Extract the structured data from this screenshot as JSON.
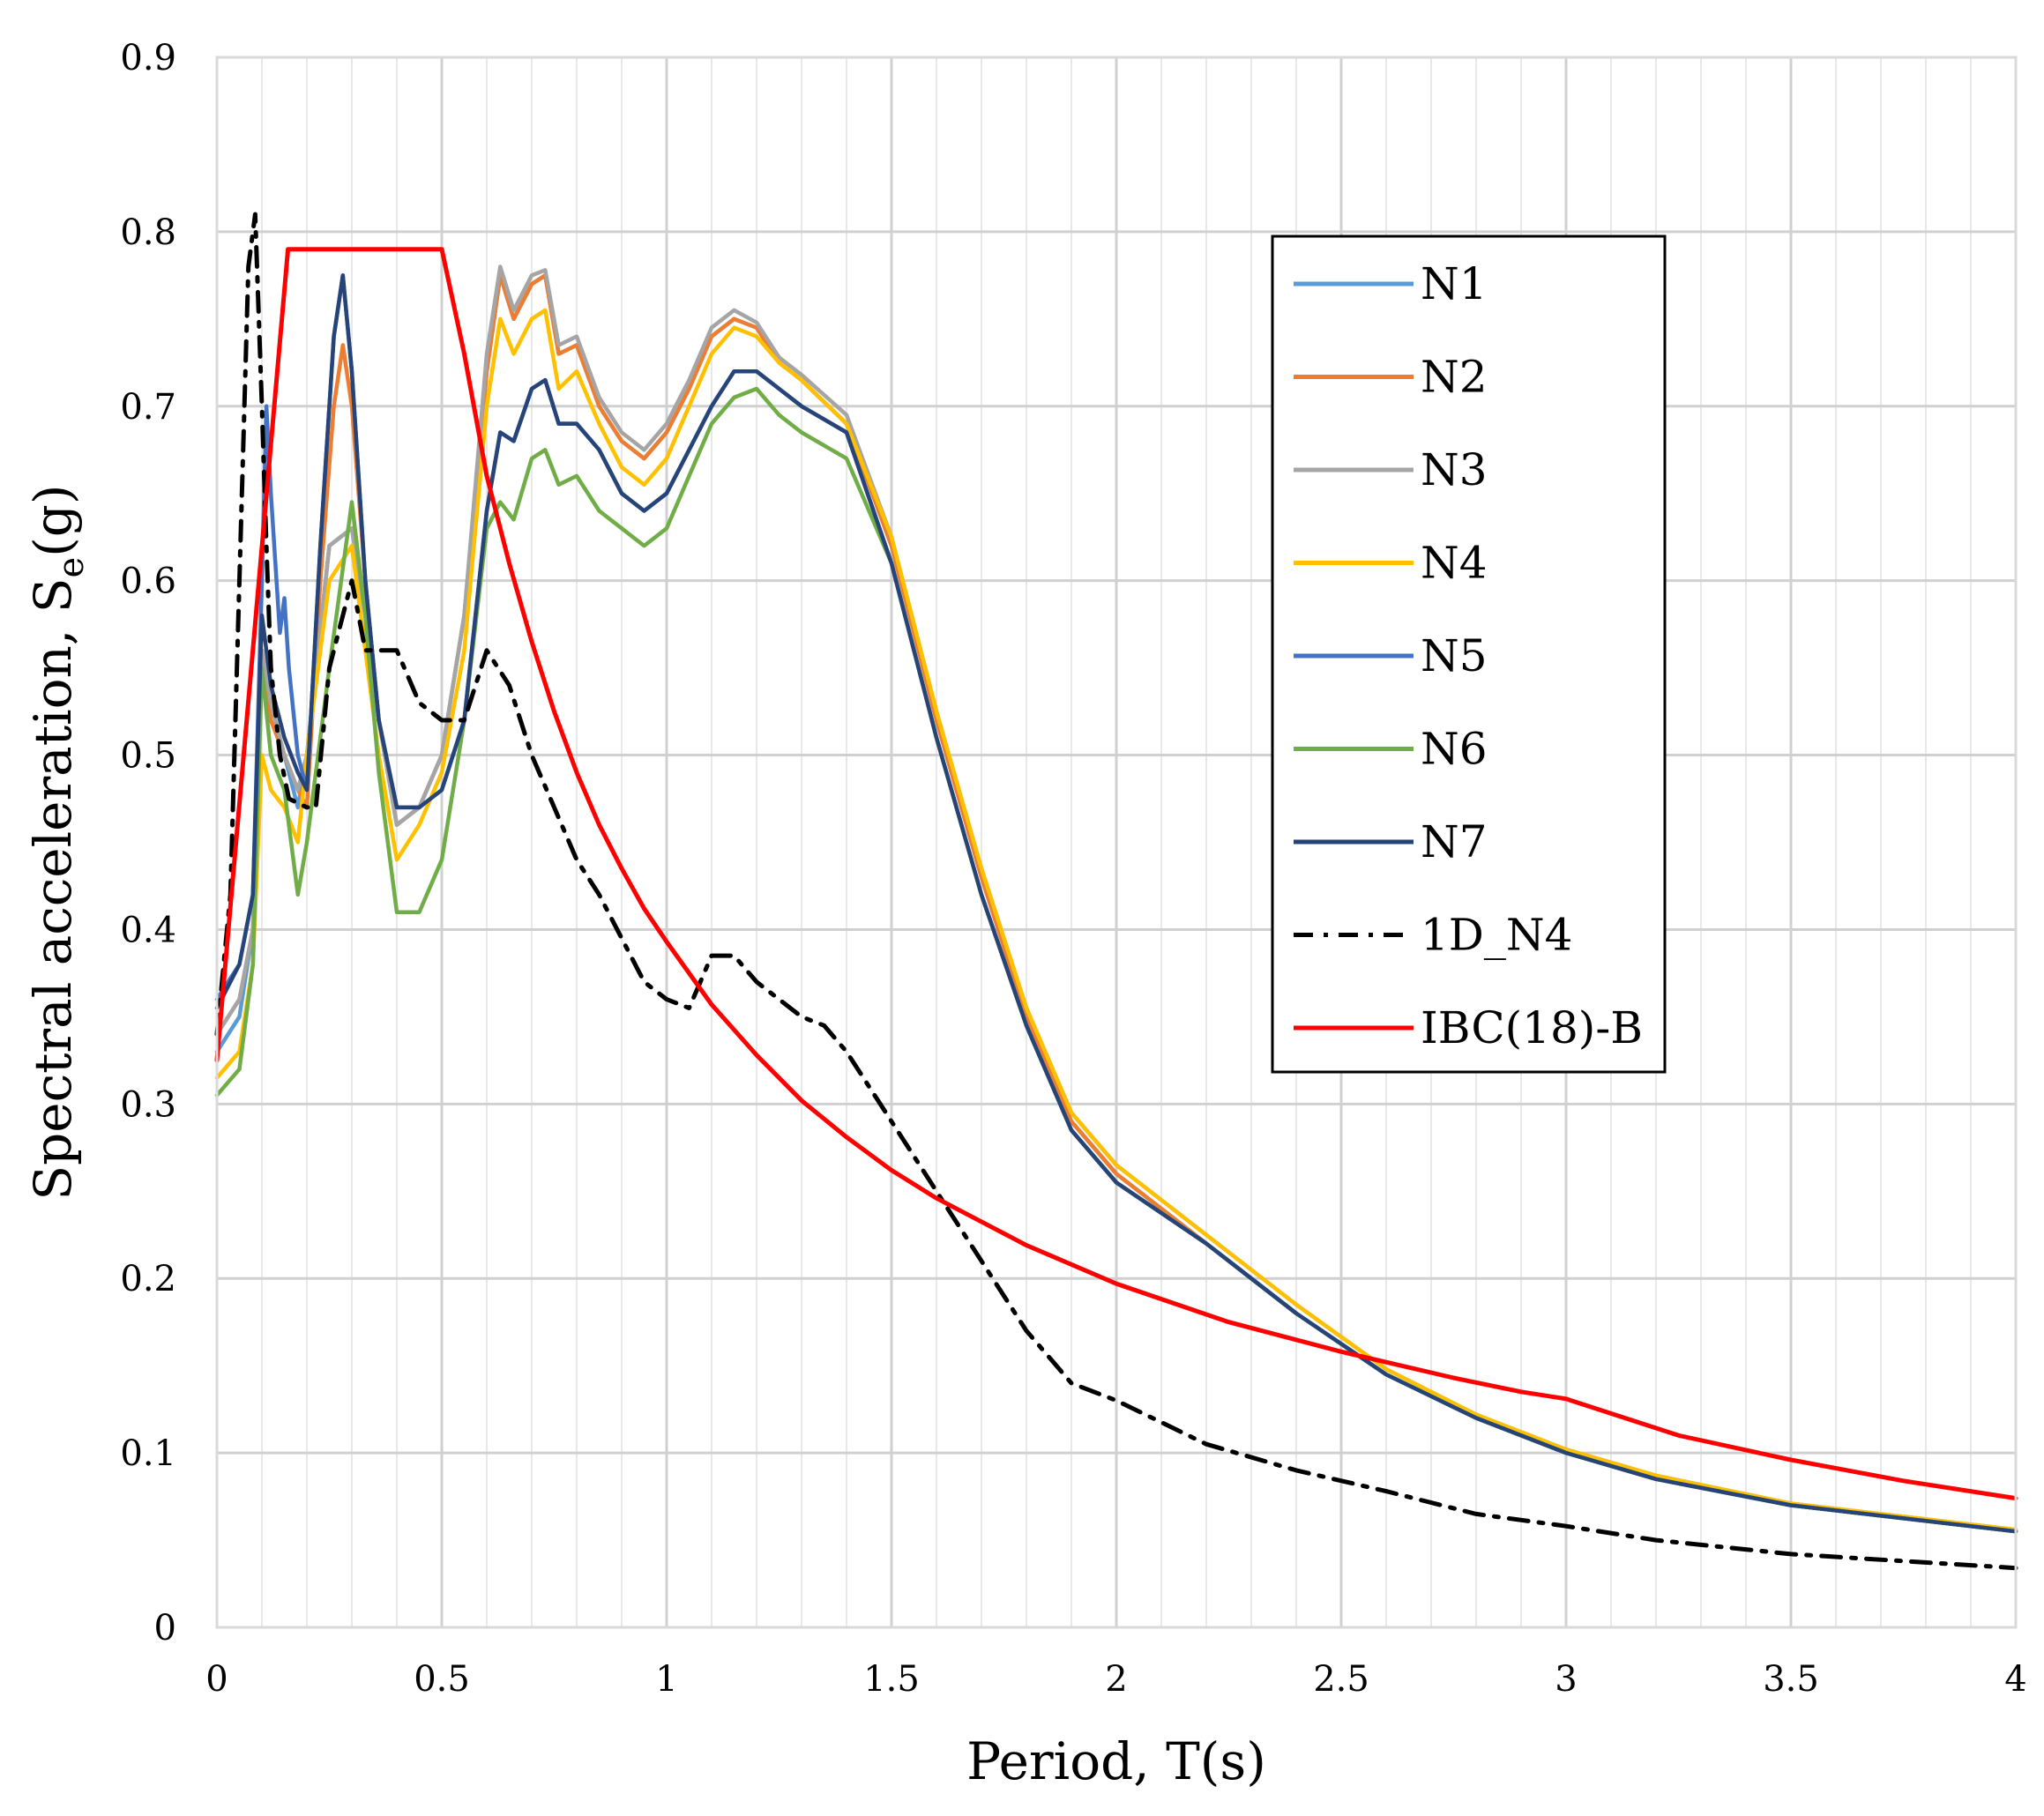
{
  "chart_data": {
    "type": "line",
    "title": "",
    "xlabel": "Period, T(s)",
    "ylabel_main": "Spectral acceleration, S",
    "ylabel_sub": "e",
    "ylabel_tail": "(g)",
    "xlim": [
      0,
      4
    ],
    "ylim": [
      0,
      0.9
    ],
    "x_ticks": [
      0,
      0.5,
      1,
      1.5,
      2,
      2.5,
      3,
      3.5,
      4
    ],
    "x_tick_labels": [
      "0",
      "0.5",
      "1",
      "1.5",
      "2",
      "2.5",
      "3",
      "3.5",
      "4"
    ],
    "y_ticks": [
      0,
      0.1,
      0.2,
      0.3,
      0.4,
      0.5,
      0.6,
      0.7,
      0.8,
      0.9
    ],
    "y_tick_labels": [
      "0",
      "0.1",
      "0.2",
      "0.3",
      "0.4",
      "0.5",
      "0.6",
      "0.7",
      "0.8",
      "0.9"
    ],
    "grid": true,
    "minor_x_grid_step": 0.1,
    "legend_position": "top-right",
    "series": [
      {
        "name": "N1",
        "color": "#5B9BD5",
        "dash": "solid",
        "x": [
          0,
          0.05,
          0.08,
          0.1,
          0.12,
          0.15,
          0.18,
          0.2,
          0.25,
          0.3,
          0.33,
          0.36,
          0.4,
          0.45,
          0.5,
          0.55,
          0.6,
          0.63,
          0.66,
          0.7,
          0.73,
          0.76,
          0.8,
          0.85,
          0.9,
          0.95,
          1,
          1.05,
          1.1,
          1.15,
          1.2,
          1.25,
          1.3,
          1.4,
          1.5,
          1.6,
          1.7,
          1.8,
          1.9,
          2,
          2.2,
          2.4,
          2.6,
          2.8,
          3,
          3.2,
          3.5,
          4
        ],
        "y": [
          0.33,
          0.35,
          0.4,
          0.55,
          0.52,
          0.5,
          0.47,
          0.5,
          0.62,
          0.63,
          0.58,
          0.52,
          0.46,
          0.47,
          0.5,
          0.58,
          0.72,
          0.775,
          0.75,
          0.77,
          0.775,
          0.73,
          0.735,
          0.7,
          0.68,
          0.67,
          0.685,
          0.71,
          0.74,
          0.75,
          0.745,
          0.725,
          0.715,
          0.69,
          0.62,
          0.52,
          0.43,
          0.35,
          0.29,
          0.26,
          0.22,
          0.18,
          0.145,
          0.12,
          0.1,
          0.085,
          0.07,
          0.055
        ]
      },
      {
        "name": "N2",
        "color": "#ED7D31",
        "dash": "solid",
        "x": [
          0,
          0.05,
          0.08,
          0.1,
          0.12,
          0.15,
          0.18,
          0.2,
          0.23,
          0.26,
          0.28,
          0.3,
          0.33,
          0.36,
          0.4,
          0.45,
          0.5,
          0.55,
          0.6,
          0.63,
          0.66,
          0.7,
          0.73,
          0.76,
          0.8,
          0.85,
          0.9,
          0.95,
          1,
          1.05,
          1.1,
          1.15,
          1.2,
          1.25,
          1.3,
          1.4,
          1.5,
          1.6,
          1.7,
          1.8,
          1.9,
          2,
          2.2,
          2.4,
          2.6,
          2.8,
          3,
          3.2,
          3.5,
          4
        ],
        "y": [
          0.34,
          0.36,
          0.4,
          0.56,
          0.52,
          0.5,
          0.48,
          0.47,
          0.6,
          0.7,
          0.735,
          0.7,
          0.6,
          0.52,
          0.46,
          0.47,
          0.5,
          0.58,
          0.72,
          0.775,
          0.75,
          0.77,
          0.775,
          0.73,
          0.735,
          0.7,
          0.68,
          0.67,
          0.685,
          0.71,
          0.74,
          0.75,
          0.745,
          0.725,
          0.715,
          0.69,
          0.62,
          0.52,
          0.43,
          0.35,
          0.29,
          0.26,
          0.22,
          0.18,
          0.145,
          0.12,
          0.1,
          0.085,
          0.07,
          0.055
        ]
      },
      {
        "name": "N3",
        "color": "#A5A5A5",
        "dash": "solid",
        "x": [
          0,
          0.05,
          0.08,
          0.1,
          0.12,
          0.15,
          0.18,
          0.2,
          0.25,
          0.3,
          0.33,
          0.36,
          0.4,
          0.45,
          0.5,
          0.55,
          0.6,
          0.63,
          0.66,
          0.7,
          0.73,
          0.76,
          0.8,
          0.85,
          0.9,
          0.95,
          1,
          1.05,
          1.1,
          1.15,
          1.2,
          1.25,
          1.3,
          1.4,
          1.5,
          1.6,
          1.7,
          1.8,
          1.9,
          2,
          2.2,
          2.4,
          2.6,
          2.8,
          3,
          3.2,
          3.5,
          4
        ],
        "y": [
          0.34,
          0.36,
          0.4,
          0.56,
          0.53,
          0.5,
          0.48,
          0.5,
          0.62,
          0.63,
          0.58,
          0.52,
          0.46,
          0.47,
          0.5,
          0.58,
          0.73,
          0.78,
          0.755,
          0.775,
          0.778,
          0.735,
          0.74,
          0.705,
          0.685,
          0.675,
          0.69,
          0.715,
          0.745,
          0.755,
          0.748,
          0.728,
          0.718,
          0.695,
          0.625,
          0.525,
          0.435,
          0.355,
          0.295,
          0.265,
          0.225,
          0.185,
          0.148,
          0.122,
          0.102,
          0.087,
          0.071,
          0.056
        ]
      },
      {
        "name": "N4",
        "color": "#FFC000",
        "dash": "solid",
        "x": [
          0,
          0.05,
          0.08,
          0.1,
          0.12,
          0.15,
          0.18,
          0.2,
          0.25,
          0.3,
          0.33,
          0.36,
          0.4,
          0.45,
          0.5,
          0.55,
          0.6,
          0.63,
          0.66,
          0.7,
          0.73,
          0.76,
          0.8,
          0.85,
          0.9,
          0.95,
          1,
          1.05,
          1.1,
          1.15,
          1.2,
          1.25,
          1.3,
          1.4,
          1.5,
          1.6,
          1.7,
          1.8,
          1.9,
          2,
          2.2,
          2.4,
          2.6,
          2.8,
          3,
          3.2,
          3.5,
          4
        ],
        "y": [
          0.315,
          0.33,
          0.38,
          0.5,
          0.48,
          0.47,
          0.45,
          0.5,
          0.6,
          0.62,
          0.56,
          0.5,
          0.44,
          0.46,
          0.49,
          0.56,
          0.7,
          0.75,
          0.73,
          0.75,
          0.755,
          0.71,
          0.72,
          0.69,
          0.665,
          0.655,
          0.67,
          0.7,
          0.73,
          0.745,
          0.74,
          0.725,
          0.715,
          0.69,
          0.625,
          0.525,
          0.435,
          0.355,
          0.295,
          0.265,
          0.225,
          0.185,
          0.148,
          0.122,
          0.102,
          0.087,
          0.071,
          0.056
        ]
      },
      {
        "name": "N5",
        "color": "#4472C4",
        "dash": "solid",
        "x": [
          0,
          0.05,
          0.08,
          0.1,
          0.11,
          0.12,
          0.14,
          0.15,
          0.16,
          0.18,
          0.2,
          0.23,
          0.26,
          0.28,
          0.3,
          0.33,
          0.36,
          0.4,
          0.45,
          0.5,
          0.55,
          0.6,
          0.63,
          0.66,
          0.7,
          0.73,
          0.76,
          0.8,
          0.85,
          0.9,
          0.95,
          1,
          1.05,
          1.1,
          1.15,
          1.2,
          1.25,
          1.3,
          1.4,
          1.5,
          1.6,
          1.7,
          1.8,
          1.9,
          2,
          2.2,
          2.4,
          2.6,
          2.8,
          3,
          3.2,
          3.5,
          4
        ],
        "y": [
          0.36,
          0.38,
          0.42,
          0.6,
          0.7,
          0.65,
          0.57,
          0.59,
          0.55,
          0.5,
          0.48,
          0.62,
          0.74,
          0.775,
          0.72,
          0.6,
          0.52,
          0.47,
          0.47,
          0.48,
          0.52,
          0.64,
          0.685,
          0.68,
          0.71,
          0.715,
          0.69,
          0.69,
          0.675,
          0.65,
          0.64,
          0.65,
          0.675,
          0.7,
          0.72,
          0.72,
          0.71,
          0.7,
          0.685,
          0.61,
          0.51,
          0.42,
          0.345,
          0.285,
          0.255,
          0.22,
          0.18,
          0.145,
          0.12,
          0.1,
          0.085,
          0.07,
          0.055
        ]
      },
      {
        "name": "N6",
        "color": "#70AD47",
        "dash": "solid",
        "x": [
          0,
          0.05,
          0.08,
          0.1,
          0.12,
          0.15,
          0.18,
          0.2,
          0.25,
          0.3,
          0.33,
          0.36,
          0.4,
          0.43,
          0.45,
          0.5,
          0.55,
          0.6,
          0.63,
          0.66,
          0.7,
          0.73,
          0.76,
          0.8,
          0.85,
          0.9,
          0.95,
          1,
          1.05,
          1.1,
          1.15,
          1.2,
          1.25,
          1.3,
          1.4,
          1.5,
          1.6,
          1.7,
          1.8,
          1.9,
          2,
          2.2,
          2.4,
          2.6,
          2.8,
          3,
          3.2,
          3.5,
          4
        ],
        "y": [
          0.305,
          0.32,
          0.38,
          0.55,
          0.5,
          0.48,
          0.42,
          0.45,
          0.55,
          0.645,
          0.58,
          0.49,
          0.41,
          0.41,
          0.41,
          0.44,
          0.52,
          0.63,
          0.645,
          0.635,
          0.67,
          0.675,
          0.655,
          0.66,
          0.64,
          0.63,
          0.62,
          0.63,
          0.66,
          0.69,
          0.705,
          0.71,
          0.695,
          0.685,
          0.67,
          0.61,
          0.51,
          0.42,
          0.345,
          0.285,
          0.255,
          0.22,
          0.18,
          0.145,
          0.12,
          0.1,
          0.085,
          0.07,
          0.055
        ]
      },
      {
        "name": "N7",
        "color": "#264478",
        "dash": "solid",
        "x": [
          0,
          0.05,
          0.08,
          0.1,
          0.12,
          0.15,
          0.18,
          0.2,
          0.23,
          0.26,
          0.28,
          0.3,
          0.33,
          0.36,
          0.4,
          0.45,
          0.5,
          0.55,
          0.6,
          0.63,
          0.66,
          0.7,
          0.73,
          0.76,
          0.8,
          0.85,
          0.9,
          0.95,
          1,
          1.05,
          1.1,
          1.15,
          1.2,
          1.25,
          1.3,
          1.4,
          1.5,
          1.6,
          1.7,
          1.8,
          1.9,
          2,
          2.2,
          2.4,
          2.6,
          2.8,
          3,
          3.2,
          3.5,
          4
        ],
        "y": [
          0.355,
          0.38,
          0.42,
          0.58,
          0.54,
          0.51,
          0.49,
          0.48,
          0.62,
          0.74,
          0.775,
          0.72,
          0.6,
          0.52,
          0.47,
          0.47,
          0.48,
          0.52,
          0.64,
          0.685,
          0.68,
          0.71,
          0.715,
          0.69,
          0.69,
          0.675,
          0.65,
          0.64,
          0.65,
          0.675,
          0.7,
          0.72,
          0.72,
          0.71,
          0.7,
          0.685,
          0.61,
          0.51,
          0.42,
          0.345,
          0.285,
          0.255,
          0.22,
          0.18,
          0.145,
          0.12,
          0.1,
          0.085,
          0.07,
          0.055
        ]
      },
      {
        "name": "1D_N4",
        "color": "#000000",
        "dash": "dashdot",
        "x": [
          0,
          0.03,
          0.05,
          0.07,
          0.085,
          0.1,
          0.11,
          0.12,
          0.14,
          0.16,
          0.2,
          0.22,
          0.25,
          0.3,
          0.33,
          0.36,
          0.4,
          0.45,
          0.5,
          0.55,
          0.6,
          0.65,
          0.7,
          0.75,
          0.8,
          0.85,
          0.9,
          0.95,
          1,
          1.05,
          1.1,
          1.15,
          1.2,
          1.25,
          1.3,
          1.35,
          1.4,
          1.5,
          1.6,
          1.7,
          1.8,
          1.9,
          2,
          2.2,
          2.4,
          2.6,
          2.8,
          3,
          3.2,
          3.5,
          4
        ],
        "y": [
          0.34,
          0.42,
          0.6,
          0.78,
          0.81,
          0.7,
          0.62,
          0.55,
          0.5,
          0.475,
          0.47,
          0.47,
          0.55,
          0.6,
          0.56,
          0.56,
          0.56,
          0.53,
          0.52,
          0.52,
          0.56,
          0.54,
          0.5,
          0.47,
          0.44,
          0.42,
          0.395,
          0.37,
          0.36,
          0.355,
          0.385,
          0.385,
          0.37,
          0.36,
          0.35,
          0.345,
          0.33,
          0.29,
          0.25,
          0.21,
          0.17,
          0.14,
          0.13,
          0.105,
          0.09,
          0.078,
          0.065,
          0.058,
          0.05,
          0.042,
          0.034
        ]
      },
      {
        "name": "IBC(18)-B",
        "color": "#FF0000",
        "dash": "solid",
        "x": [
          0,
          0.158,
          0.5,
          0.55,
          0.6,
          0.65,
          0.7,
          0.75,
          0.8,
          0.85,
          0.9,
          0.95,
          1,
          1.1,
          1.2,
          1.3,
          1.4,
          1.5,
          1.6,
          1.8,
          2,
          2.25,
          2.5,
          2.75,
          2.9,
          3,
          3.25,
          3.5,
          3.75,
          4
        ],
        "y": [
          0.325,
          0.79,
          0.79,
          0.73,
          0.66,
          0.61,
          0.565,
          0.525,
          0.49,
          0.46,
          0.435,
          0.412,
          0.393,
          0.357,
          0.328,
          0.302,
          0.281,
          0.262,
          0.246,
          0.219,
          0.197,
          0.175,
          0.158,
          0.143,
          0.135,
          0.131,
          0.11,
          0.096,
          0.084,
          0.074
        ]
      }
    ]
  }
}
